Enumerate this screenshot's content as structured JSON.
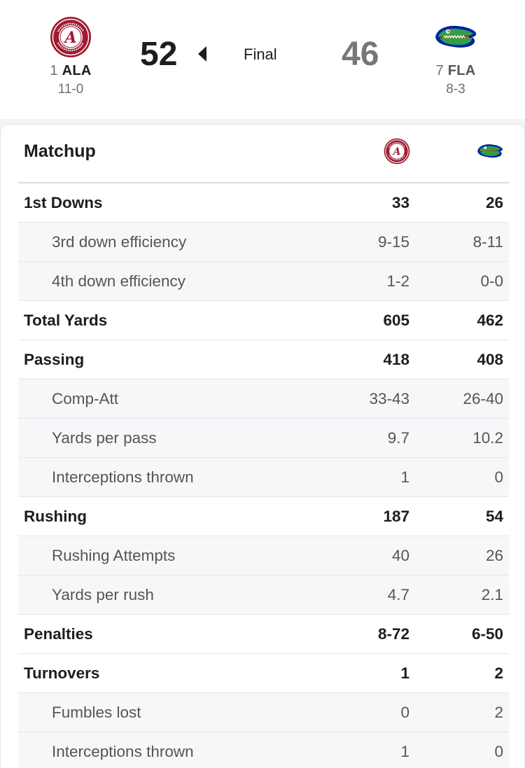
{
  "scoreboard": {
    "home": {
      "rank": "1",
      "abbr": "ALA",
      "record": "11-0",
      "score": "52",
      "logo": "alabama-logo",
      "color": "#9e1b32"
    },
    "away": {
      "rank": "7",
      "abbr": "FLA",
      "record": "8-3",
      "score": "46",
      "logo": "florida-gator-logo",
      "color": "#0021a5"
    },
    "status": "Final",
    "winner_indicator": "left-triangle-icon"
  },
  "matchup": {
    "title": "Matchup",
    "stats": [
      {
        "label": "1st Downs",
        "home": "33",
        "away": "26",
        "sub": false
      },
      {
        "label": "3rd down efficiency",
        "home": "9-15",
        "away": "8-11",
        "sub": true
      },
      {
        "label": "4th down efficiency",
        "home": "1-2",
        "away": "0-0",
        "sub": true
      },
      {
        "label": "Total Yards",
        "home": "605",
        "away": "462",
        "sub": false
      },
      {
        "label": "Passing",
        "home": "418",
        "away": "408",
        "sub": false
      },
      {
        "label": "Comp-Att",
        "home": "33-43",
        "away": "26-40",
        "sub": true
      },
      {
        "label": "Yards per pass",
        "home": "9.7",
        "away": "10.2",
        "sub": true
      },
      {
        "label": "Interceptions thrown",
        "home": "1",
        "away": "0",
        "sub": true
      },
      {
        "label": "Rushing",
        "home": "187",
        "away": "54",
        "sub": false
      },
      {
        "label": "Rushing Attempts",
        "home": "40",
        "away": "26",
        "sub": true
      },
      {
        "label": "Yards per rush",
        "home": "4.7",
        "away": "2.1",
        "sub": true
      },
      {
        "label": "Penalties",
        "home": "8-72",
        "away": "6-50",
        "sub": false
      },
      {
        "label": "Turnovers",
        "home": "1",
        "away": "2",
        "sub": false
      },
      {
        "label": "Fumbles lost",
        "home": "0",
        "away": "2",
        "sub": true
      },
      {
        "label": "Interceptions thrown",
        "home": "1",
        "away": "0",
        "sub": true
      }
    ]
  }
}
